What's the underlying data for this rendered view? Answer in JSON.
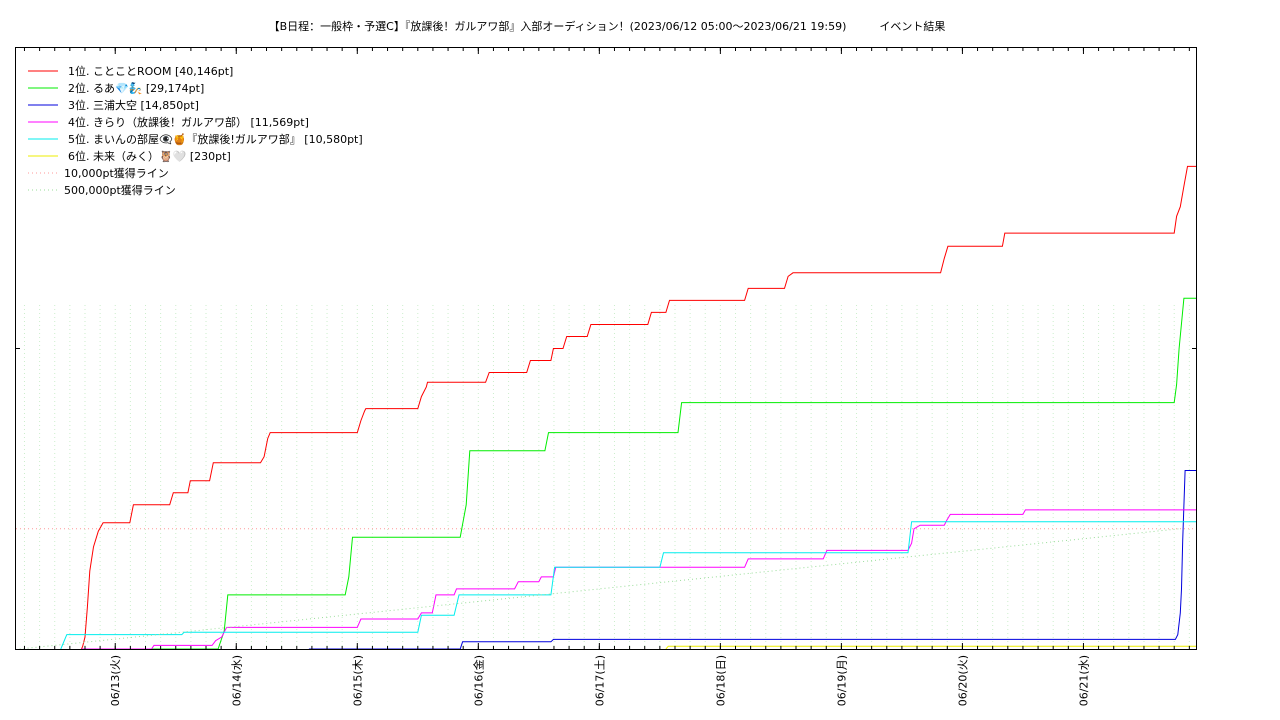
{
  "chart_data": {
    "type": "line",
    "title": "【B日程：一般枠・予選C】『放課後！ガルアワ部』入部オーディション！(2023/06/12 05:00～2023/06/21 19:59)　　　イベント結果",
    "xlabel": "",
    "ylabel": "",
    "x_unit": "days since 2023-06-12 00:00",
    "xlim": [
      0.18,
      9.93
    ],
    "ylim": [
      0,
      50000
    ],
    "grid": true,
    "legend_position": "top-left",
    "x_tick_labels": [
      "06/13(火)",
      "06/14(水)",
      "06/15(木)",
      "06/16(金)",
      "06/17(土)",
      "06/18(日)",
      "06/19(月)",
      "06/20(火)",
      "06/21(水)"
    ],
    "x_ticks": [
      1,
      2,
      3,
      4,
      5,
      6,
      7,
      8,
      9
    ],
    "series": [
      {
        "name": "1位. ことことROOM [40,146pt]",
        "color": "#ff0000",
        "points": [
          [
            0.72,
            0
          ],
          [
            0.73,
            200
          ],
          [
            0.75,
            1000
          ],
          [
            0.77,
            3500
          ],
          [
            0.79,
            6500
          ],
          [
            0.82,
            8500
          ],
          [
            0.86,
            9800
          ],
          [
            0.9,
            10500
          ],
          [
            1.12,
            10500
          ],
          [
            1.15,
            12000
          ],
          [
            1.45,
            12000
          ],
          [
            1.48,
            13000
          ],
          [
            1.6,
            13000
          ],
          [
            1.62,
            14000
          ],
          [
            1.78,
            14000
          ],
          [
            1.81,
            15500
          ],
          [
            2.2,
            15500
          ],
          [
            2.23,
            16000
          ],
          [
            2.26,
            17500
          ],
          [
            2.28,
            18000
          ],
          [
            3.0,
            18000
          ],
          [
            3.03,
            19000
          ],
          [
            3.06,
            19800
          ],
          [
            3.07,
            20000
          ],
          [
            3.5,
            20000
          ],
          [
            3.53,
            21000
          ],
          [
            3.57,
            21800
          ],
          [
            3.58,
            22200
          ],
          [
            4.06,
            22200
          ],
          [
            4.09,
            23000
          ],
          [
            4.4,
            23000
          ],
          [
            4.43,
            24000
          ],
          [
            4.6,
            24000
          ],
          [
            4.62,
            25000
          ],
          [
            4.7,
            25000
          ],
          [
            4.73,
            26000
          ],
          [
            4.9,
            26000
          ],
          [
            4.93,
            27000
          ],
          [
            5.4,
            27000
          ],
          [
            5.43,
            28000
          ],
          [
            5.55,
            28000
          ],
          [
            5.58,
            29000
          ],
          [
            6.2,
            29000
          ],
          [
            6.23,
            30000
          ],
          [
            6.53,
            30000
          ],
          [
            6.56,
            31000
          ],
          [
            6.6,
            31300
          ],
          [
            7.82,
            31300
          ],
          [
            7.85,
            32500
          ],
          [
            7.88,
            33500
          ],
          [
            8.33,
            33500
          ],
          [
            8.35,
            34600
          ],
          [
            9.75,
            34600
          ],
          [
            9.77,
            36000
          ],
          [
            9.8,
            36800
          ],
          [
            9.83,
            38500
          ],
          [
            9.86,
            40146
          ],
          [
            9.93,
            40146
          ]
        ]
      },
      {
        "name": "2位. るあ💎🧞 [29,174pt]",
        "color": "#00ee00",
        "points": [
          [
            0.72,
            0
          ],
          [
            1.85,
            0
          ],
          [
            1.9,
            1500
          ],
          [
            1.93,
            4500
          ],
          [
            2.9,
            4500
          ],
          [
            2.93,
            6000
          ],
          [
            2.96,
            9300
          ],
          [
            3.85,
            9300
          ],
          [
            3.9,
            12000
          ],
          [
            3.93,
            16500
          ],
          [
            4.55,
            16500
          ],
          [
            4.58,
            18000
          ],
          [
            5.65,
            18000
          ],
          [
            5.68,
            20500
          ],
          [
            5.7,
            20500
          ],
          [
            9.75,
            20500
          ],
          [
            9.77,
            22000
          ],
          [
            9.79,
            25000
          ],
          [
            9.83,
            29174
          ],
          [
            9.93,
            29174
          ]
        ]
      },
      {
        "name": "3位. 三浦大空 [14,850pt]",
        "color": "#0000dd",
        "points": [
          [
            2.6,
            0
          ],
          [
            3.85,
            0
          ],
          [
            3.87,
            600
          ],
          [
            4.6,
            600
          ],
          [
            4.62,
            800
          ],
          [
            9.76,
            800
          ],
          [
            9.78,
            1200
          ],
          [
            9.8,
            3000
          ],
          [
            9.81,
            5000
          ],
          [
            9.82,
            9000
          ],
          [
            9.84,
            14850
          ],
          [
            9.93,
            14850
          ]
        ]
      },
      {
        "name": "4位. きらり（放課後！ガルアワ部） [11,569pt]",
        "color": "#ff00ff",
        "points": [
          [
            0.72,
            0
          ],
          [
            1.3,
            0
          ],
          [
            1.32,
            300
          ],
          [
            1.8,
            300
          ],
          [
            1.83,
            700
          ],
          [
            1.88,
            1000
          ],
          [
            1.92,
            1800
          ],
          [
            3.0,
            1800
          ],
          [
            3.03,
            2500
          ],
          [
            3.5,
            2500
          ],
          [
            3.53,
            3000
          ],
          [
            3.62,
            3000
          ],
          [
            3.65,
            4500
          ],
          [
            3.8,
            4500
          ],
          [
            3.82,
            5000
          ],
          [
            4.3,
            5000
          ],
          [
            4.33,
            5600
          ],
          [
            4.5,
            5600
          ],
          [
            4.52,
            6000
          ],
          [
            4.62,
            6000
          ],
          [
            4.64,
            6800
          ],
          [
            6.2,
            6800
          ],
          [
            6.23,
            7500
          ],
          [
            6.85,
            7500
          ],
          [
            6.88,
            8200
          ],
          [
            7.55,
            8200
          ],
          [
            7.58,
            8800
          ],
          [
            7.6,
            10000
          ],
          [
            7.65,
            10300
          ],
          [
            7.85,
            10300
          ],
          [
            7.87,
            10700
          ],
          [
            7.9,
            11200
          ],
          [
            8.5,
            11200
          ],
          [
            8.52,
            11569
          ],
          [
            9.93,
            11569
          ]
        ]
      },
      {
        "name": "5位. まいんの部屋👁‍🗨🍯『放課後!ガルアワ部』 [10,580pt]",
        "color": "#00eeee",
        "points": [
          [
            0.55,
            0
          ],
          [
            0.6,
            1200
          ],
          [
            1.55,
            1200
          ],
          [
            1.57,
            1400
          ],
          [
            3.5,
            1400
          ],
          [
            3.53,
            2800
          ],
          [
            3.8,
            2800
          ],
          [
            3.84,
            4500
          ],
          [
            4.6,
            4500
          ],
          [
            4.63,
            6800
          ],
          [
            5.5,
            6800
          ],
          [
            5.53,
            8000
          ],
          [
            7.55,
            8000
          ],
          [
            7.58,
            10580
          ],
          [
            9.93,
            10580
          ]
        ]
      },
      {
        "name": "6位. 未来（みく）🦉🤍 [230pt]",
        "color": "#eeee00",
        "points": [
          [
            5.55,
            0
          ],
          [
            5.57,
            230
          ],
          [
            9.93,
            230
          ]
        ]
      },
      {
        "name": "10,000pt獲得ライン",
        "color": "#ff9999",
        "style": "dotted",
        "points": [
          [
            0.18,
            10000
          ],
          [
            9.93,
            10000
          ]
        ]
      },
      {
        "name": "500,000pt獲得ライン",
        "color": "#99dd99",
        "style": "dotted",
        "points": [
          [
            0.21,
            0
          ],
          [
            9.79,
            10000
          ]
        ]
      }
    ]
  }
}
